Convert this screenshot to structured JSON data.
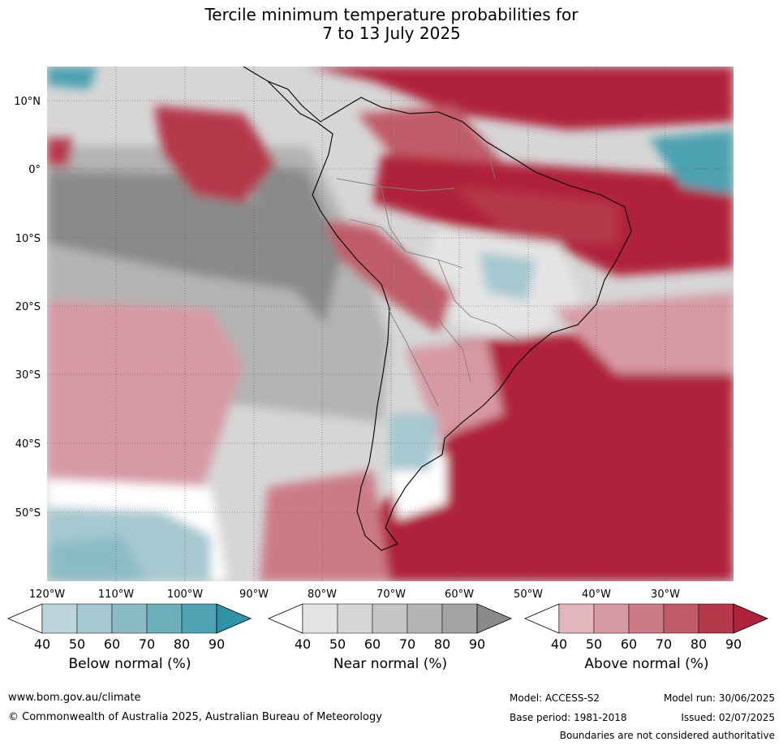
{
  "title": {
    "line1": "Tercile minimum temperature probabilities for",
    "line2": "7 to 13 July 2025"
  },
  "map": {
    "lat_labels": [
      "10°N",
      "0°",
      "10°S",
      "20°S",
      "30°S",
      "40°S",
      "50°S"
    ],
    "lon_labels": [
      "120°W",
      "110°W",
      "100°W",
      "90°W",
      "80°W",
      "70°W",
      "60°W",
      "50°W",
      "40°W",
      "30°W"
    ]
  },
  "colorbars": [
    {
      "name": "below",
      "label": "Below normal (%)",
      "ticks": [
        "40",
        "50",
        "60",
        "70",
        "80",
        "90"
      ],
      "colors": [
        "#bcd4db",
        "#a6c8d0",
        "#8bbcc6",
        "#6eafbc",
        "#4ea2b2",
        "#2f93a7"
      ]
    },
    {
      "name": "near",
      "label": "Near normal (%)",
      "ticks": [
        "40",
        "50",
        "60",
        "70",
        "80",
        "90"
      ],
      "colors": [
        "#e4e4e4",
        "#d6d6d6",
        "#c5c5c5",
        "#b4b4b4",
        "#a3a3a3",
        "#8a8a8a"
      ]
    },
    {
      "name": "above",
      "label": "Above normal (%)",
      "ticks": [
        "40",
        "50",
        "60",
        "70",
        "80",
        "90"
      ],
      "colors": [
        "#e2b6bd",
        "#d79aa4",
        "#cc7a86",
        "#c15b69",
        "#b6384b",
        "#b0213a"
      ]
    }
  ],
  "footer": {
    "url": "www.bom.gov.au/climate",
    "copyright": "© Commonwealth of Australia 2025, Australian Bureau of Meteorology",
    "model": "Model: ACCESS-S2",
    "base_period": "Base period: 1981-2018",
    "model_run": "Model run: 30/06/2025",
    "issued": "Issued: 02/07/2025",
    "disclaimer": "Boundaries are not considered authoritative"
  }
}
